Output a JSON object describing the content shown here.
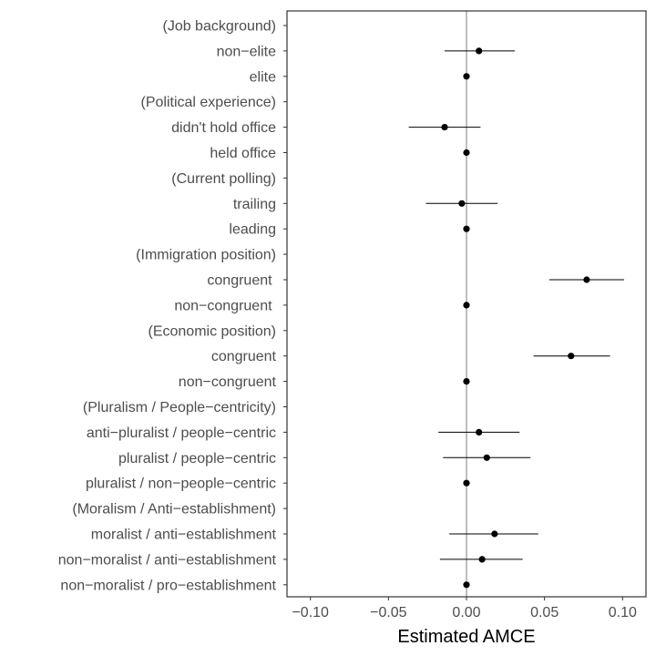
{
  "chart_data": {
    "type": "scatter",
    "subtype": "coefficient-plot-with-confidence-intervals",
    "orientation": "horizontal",
    "title": "",
    "xlabel": "Estimated AMCE",
    "ylabel": "",
    "xlim": [
      -0.115,
      0.115
    ],
    "xticks": [
      -0.1,
      -0.05,
      0.0,
      0.05,
      0.1
    ],
    "xtick_labels": [
      "−0.10",
      "−0.05",
      "0.00",
      "0.05",
      "0.10"
    ],
    "reference_line_x": 0,
    "grid": false,
    "legend": "none",
    "rows": [
      {
        "label": "(Job background)",
        "header": true
      },
      {
        "label": "non−elite",
        "estimate": 0.008,
        "lower": -0.014,
        "upper": 0.031
      },
      {
        "label": "elite",
        "estimate": 0.0,
        "lower": null,
        "upper": null
      },
      {
        "label": "(Political experience)",
        "header": true
      },
      {
        "label": "didn't hold office",
        "estimate": -0.014,
        "lower": -0.037,
        "upper": 0.009
      },
      {
        "label": "held office",
        "estimate": 0.0,
        "lower": null,
        "upper": null
      },
      {
        "label": "(Current polling)",
        "header": true
      },
      {
        "label": "trailing",
        "estimate": -0.003,
        "lower": -0.026,
        "upper": 0.02
      },
      {
        "label": "leading",
        "estimate": 0.0,
        "lower": null,
        "upper": null
      },
      {
        "label": "(Immigration position)",
        "header": true
      },
      {
        "label": "congruent ",
        "estimate": 0.077,
        "lower": 0.053,
        "upper": 0.101
      },
      {
        "label": "non−congruent ",
        "estimate": 0.0,
        "lower": null,
        "upper": null
      },
      {
        "label": "(Economic position)",
        "header": true
      },
      {
        "label": "congruent",
        "estimate": 0.067,
        "lower": 0.043,
        "upper": 0.092
      },
      {
        "label": "non−congruent",
        "estimate": 0.0,
        "lower": null,
        "upper": null
      },
      {
        "label": "(Pluralism / People−centricity)",
        "header": true
      },
      {
        "label": "anti−pluralist / people−centric",
        "estimate": 0.008,
        "lower": -0.018,
        "upper": 0.034
      },
      {
        "label": "pluralist / people−centric",
        "estimate": 0.013,
        "lower": -0.015,
        "upper": 0.041
      },
      {
        "label": "pluralist / non−people−centric",
        "estimate": 0.0,
        "lower": null,
        "upper": null
      },
      {
        "label": "(Moralism / Anti−establishment)",
        "header": true
      },
      {
        "label": "moralist / anti−establishment",
        "estimate": 0.018,
        "lower": -0.011,
        "upper": 0.046
      },
      {
        "label": "non−moralist / anti−establishment",
        "estimate": 0.01,
        "lower": -0.017,
        "upper": 0.036
      },
      {
        "label": "non−moralist / pro−establishment",
        "estimate": 0.0,
        "lower": null,
        "upper": null
      }
    ]
  },
  "colors": {
    "point": "#000000",
    "ci_line": "#000000",
    "reference_line": "#bebebe",
    "panel_border": "#333333",
    "label_text": "#4d4d4d",
    "title_text": "#000000"
  }
}
